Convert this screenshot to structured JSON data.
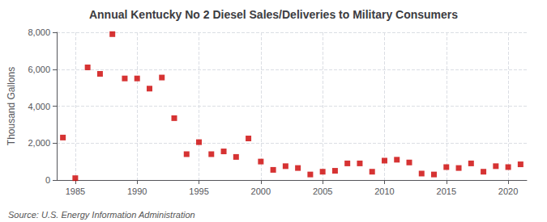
{
  "chart_data": {
    "type": "scatter",
    "title": "Annual Kentucky No 2 Diesel Sales/Deliveries to Military Consumers",
    "ylabel": "Thousand Gallons",
    "annotations": [
      "Source: U.S. Energy Information Administration"
    ],
    "x": [
      1984,
      1985,
      1986,
      1987,
      1988,
      1989,
      1990,
      1991,
      1992,
      1993,
      1994,
      1995,
      1996,
      1997,
      1998,
      1999,
      2000,
      2001,
      2002,
      2003,
      2004,
      2005,
      2006,
      2007,
      2008,
      2009,
      2010,
      2011,
      2012,
      2013,
      2014,
      2015,
      2016,
      2017,
      2018,
      2019,
      2020,
      2021
    ],
    "values": [
      2300,
      100,
      6100,
      5750,
      7900,
      5500,
      5500,
      4950,
      5550,
      3350,
      1400,
      2050,
      1400,
      1550,
      1250,
      2250,
      1000,
      550,
      750,
      650,
      300,
      450,
      500,
      900,
      900,
      450,
      1050,
      1100,
      950,
      350,
      300,
      700,
      650,
      900,
      450,
      750,
      700,
      850
    ],
    "color": "#cc0000",
    "marker": "square",
    "xlim": [
      1983.5,
      2021.5
    ],
    "xticks": [
      1985,
      1990,
      1995,
      2000,
      2005,
      2010,
      2015,
      2020
    ],
    "ylim": [
      0,
      8000
    ],
    "yticks": [
      0,
      {
        "value": 2000,
        "label": "2,000"
      },
      {
        "value": 4000,
        "label": "4,000"
      },
      {
        "value": 6000,
        "label": "6,000"
      },
      {
        "value": 8000,
        "label": "8,000"
      }
    ],
    "grid": true
  }
}
